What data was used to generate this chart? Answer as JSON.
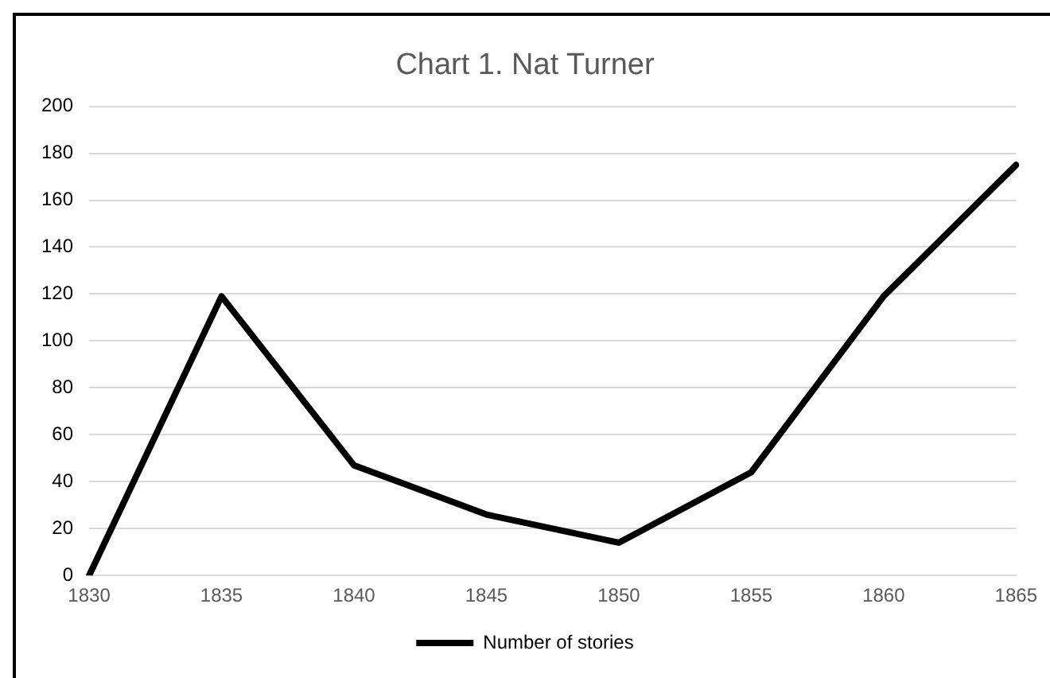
{
  "chart_data": {
    "type": "line",
    "title": "Chart 1. Nat Turner",
    "categories": [
      "1830",
      "1835",
      "1840",
      "1845",
      "1850",
      "1855",
      "1860",
      "1865"
    ],
    "series": [
      {
        "name": "Number of stories",
        "color": "#000000",
        "values": [
          0,
          119,
          47,
          26,
          14,
          44,
          119,
          175
        ]
      }
    ],
    "ylim": [
      0,
      200
    ],
    "yticks": [
      0,
      20,
      40,
      60,
      80,
      100,
      120,
      140,
      160,
      180,
      200
    ],
    "grid": "y",
    "legend": "bottom",
    "marker": "none",
    "line_style": "solid"
  }
}
